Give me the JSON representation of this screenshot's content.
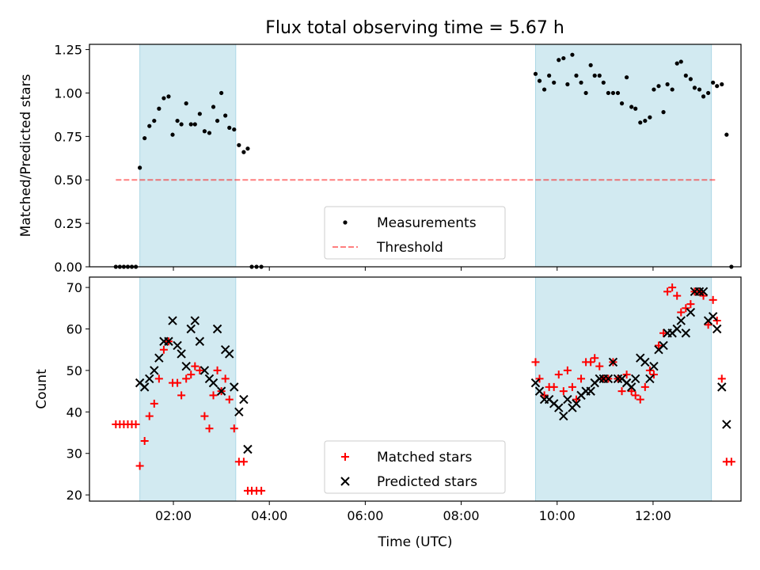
{
  "title": "Flux total observing time = 5.67 h",
  "colors": {
    "shade": "#add8e6",
    "threshold": "#ff0000",
    "matched": "#ff0000",
    "predicted": "#000000",
    "measurement": "#000000"
  },
  "chart_data": [
    {
      "type": "scatter",
      "ylabel": "Matched/Predicted stars",
      "xlabel": "",
      "xlim": [
        "00:15",
        "13:50"
      ],
      "ylim": [
        0,
        1.28
      ],
      "yticks": [
        "0.00",
        "0.25",
        "0.50",
        "0.75",
        "1.00",
        "1.25"
      ],
      "xticks": [
        "02:00",
        "04:00",
        "06:00",
        "08:00",
        "10:00",
        "12:00"
      ],
      "shaded_intervals": [
        [
          "01:18",
          "03:18"
        ],
        [
          "09:33",
          "13:13"
        ]
      ],
      "legend": {
        "position": "bottom-center",
        "entries": [
          "Measurements",
          "Threshold"
        ]
      },
      "threshold": {
        "name": "Threshold",
        "y": 0.5,
        "x_range": [
          "00:48",
          "13:20"
        ]
      },
      "series": [
        {
          "name": "Measurements",
          "points": [
            [
              "00:48",
              0.0
            ],
            [
              "00:53",
              0.0
            ],
            [
              "00:58",
              0.0
            ],
            [
              "01:03",
              0.0
            ],
            [
              "01:08",
              0.0
            ],
            [
              "01:13",
              0.0
            ],
            [
              "01:18",
              0.57
            ],
            [
              "01:24",
              0.74
            ],
            [
              "01:30",
              0.81
            ],
            [
              "01:36",
              0.84
            ],
            [
              "01:42",
              0.91
            ],
            [
              "01:48",
              0.97
            ],
            [
              "01:54",
              0.98
            ],
            [
              "01:59",
              0.76
            ],
            [
              "02:05",
              0.84
            ],
            [
              "02:10",
              0.82
            ],
            [
              "02:16",
              0.94
            ],
            [
              "02:22",
              0.82
            ],
            [
              "02:27",
              0.82
            ],
            [
              "02:33",
              0.88
            ],
            [
              "02:39",
              0.78
            ],
            [
              "02:45",
              0.77
            ],
            [
              "02:50",
              0.92
            ],
            [
              "02:55",
              0.84
            ],
            [
              "03:00",
              1.0
            ],
            [
              "03:05",
              0.87
            ],
            [
              "03:10",
              0.8
            ],
            [
              "03:16",
              0.79
            ],
            [
              "03:22",
              0.7
            ],
            [
              "03:28",
              0.66
            ],
            [
              "03:33",
              0.68
            ],
            [
              "03:38",
              0.0
            ],
            [
              "03:44",
              0.0
            ],
            [
              "03:50",
              0.0
            ],
            [
              "09:33",
              1.11
            ],
            [
              "09:38",
              1.07
            ],
            [
              "09:44",
              1.02
            ],
            [
              "09:50",
              1.1
            ],
            [
              "09:56",
              1.06
            ],
            [
              "10:02",
              1.19
            ],
            [
              "10:08",
              1.2
            ],
            [
              "10:13",
              1.05
            ],
            [
              "10:19",
              1.22
            ],
            [
              "10:24",
              1.1
            ],
            [
              "10:30",
              1.06
            ],
            [
              "10:36",
              1.0
            ],
            [
              "10:42",
              1.16
            ],
            [
              "10:47",
              1.1
            ],
            [
              "10:53",
              1.1
            ],
            [
              "10:58",
              1.06
            ],
            [
              "11:04",
              1.0
            ],
            [
              "11:10",
              1.0
            ],
            [
              "11:16",
              1.0
            ],
            [
              "11:21",
              0.94
            ],
            [
              "11:27",
              1.09
            ],
            [
              "11:33",
              0.92
            ],
            [
              "11:38",
              0.91
            ],
            [
              "11:44",
              0.83
            ],
            [
              "11:50",
              0.84
            ],
            [
              "11:56",
              0.86
            ],
            [
              "12:01",
              1.02
            ],
            [
              "12:07",
              1.04
            ],
            [
              "12:13",
              0.89
            ],
            [
              "12:18",
              1.05
            ],
            [
              "12:24",
              1.02
            ],
            [
              "12:30",
              1.17
            ],
            [
              "12:35",
              1.18
            ],
            [
              "12:41",
              1.1
            ],
            [
              "12:47",
              1.08
            ],
            [
              "12:52",
              1.03
            ],
            [
              "12:58",
              1.02
            ],
            [
              "13:03",
              0.98
            ],
            [
              "13:09",
              1.0
            ],
            [
              "13:15",
              1.06
            ],
            [
              "13:20",
              1.04
            ],
            [
              "13:26",
              1.05
            ],
            [
              "13:32",
              0.76
            ],
            [
              "13:38",
              0.0
            ]
          ]
        }
      ]
    },
    {
      "type": "scatter",
      "ylabel": "Count",
      "xlabel": "Time (UTC)",
      "xlim": [
        "00:15",
        "13:50"
      ],
      "ylim": [
        18.5,
        72.5
      ],
      "yticks": [
        "20",
        "30",
        "40",
        "50",
        "60",
        "70"
      ],
      "xticks": [
        "02:00",
        "04:00",
        "06:00",
        "08:00",
        "10:00",
        "12:00"
      ],
      "shaded_intervals": [
        [
          "01:18",
          "03:18"
        ],
        [
          "09:33",
          "13:13"
        ]
      ],
      "legend": {
        "position": "bottom-center",
        "entries": [
          "Matched stars",
          "Predicted stars"
        ]
      },
      "series": [
        {
          "name": "Matched stars",
          "marker": "+",
          "points": [
            [
              "00:48",
              37
            ],
            [
              "00:53",
              37
            ],
            [
              "00:58",
              37
            ],
            [
              "01:03",
              37
            ],
            [
              "01:08",
              37
            ],
            [
              "01:13",
              37
            ],
            [
              "01:18",
              27
            ],
            [
              "01:24",
              33
            ],
            [
              "01:30",
              39
            ],
            [
              "01:36",
              42
            ],
            [
              "01:42",
              48
            ],
            [
              "01:48",
              55
            ],
            [
              "01:54",
              57
            ],
            [
              "01:59",
              47
            ],
            [
              "02:05",
              47
            ],
            [
              "02:10",
              44
            ],
            [
              "02:16",
              48
            ],
            [
              "02:22",
              49
            ],
            [
              "02:27",
              51
            ],
            [
              "02:33",
              50
            ],
            [
              "02:39",
              39
            ],
            [
              "02:45",
              36
            ],
            [
              "02:50",
              44
            ],
            [
              "02:55",
              50
            ],
            [
              "03:00",
              45
            ],
            [
              "03:05",
              48
            ],
            [
              "03:10",
              43
            ],
            [
              "03:16",
              36
            ],
            [
              "03:22",
              28
            ],
            [
              "03:28",
              28
            ],
            [
              "03:33",
              21
            ],
            [
              "03:38",
              21
            ],
            [
              "03:44",
              21
            ],
            [
              "03:50",
              21
            ],
            [
              "09:33",
              52
            ],
            [
              "09:38",
              48
            ],
            [
              "09:44",
              44
            ],
            [
              "09:50",
              46
            ],
            [
              "09:56",
              46
            ],
            [
              "10:02",
              49
            ],
            [
              "10:08",
              45
            ],
            [
              "10:13",
              50
            ],
            [
              "10:19",
              46
            ],
            [
              "10:24",
              43
            ],
            [
              "10:30",
              48
            ],
            [
              "10:36",
              52
            ],
            [
              "10:42",
              52
            ],
            [
              "10:47",
              53
            ],
            [
              "10:53",
              51
            ],
            [
              "10:58",
              48
            ],
            [
              "11:04",
              48
            ],
            [
              "11:10",
              52
            ],
            [
              "11:16",
              48
            ],
            [
              "11:21",
              45
            ],
            [
              "11:27",
              49
            ],
            [
              "11:33",
              45
            ],
            [
              "11:38",
              44
            ],
            [
              "11:44",
              43
            ],
            [
              "11:50",
              46
            ],
            [
              "11:56",
              50
            ],
            [
              "12:01",
              49
            ],
            [
              "12:07",
              56
            ],
            [
              "12:13",
              59
            ],
            [
              "12:18",
              69
            ],
            [
              "12:24",
              70
            ],
            [
              "12:30",
              68
            ],
            [
              "12:35",
              64
            ],
            [
              "12:41",
              65
            ],
            [
              "12:47",
              66
            ],
            [
              "12:52",
              69
            ],
            [
              "12:58",
              69
            ],
            [
              "13:03",
              68
            ],
            [
              "13:09",
              61
            ],
            [
              "13:15",
              67
            ],
            [
              "13:20",
              62
            ],
            [
              "13:26",
              48
            ],
            [
              "13:32",
              28
            ],
            [
              "13:38",
              28
            ]
          ]
        },
        {
          "name": "Predicted stars",
          "marker": "x",
          "points": [
            [
              "01:18",
              47
            ],
            [
              "01:24",
              46
            ],
            [
              "01:30",
              48
            ],
            [
              "01:36",
              50
            ],
            [
              "01:42",
              53
            ],
            [
              "01:48",
              57
            ],
            [
              "01:54",
              57
            ],
            [
              "01:59",
              62
            ],
            [
              "02:05",
              56
            ],
            [
              "02:10",
              54
            ],
            [
              "02:16",
              51
            ],
            [
              "02:22",
              60
            ],
            [
              "02:27",
              62
            ],
            [
              "02:33",
              57
            ],
            [
              "02:39",
              50
            ],
            [
              "02:45",
              48
            ],
            [
              "02:50",
              47
            ],
            [
              "02:55",
              60
            ],
            [
              "03:00",
              45
            ],
            [
              "03:05",
              55
            ],
            [
              "03:10",
              54
            ],
            [
              "03:16",
              46
            ],
            [
              "03:22",
              40
            ],
            [
              "03:28",
              43
            ],
            [
              "03:33",
              31
            ],
            [
              "09:33",
              47
            ],
            [
              "09:38",
              45
            ],
            [
              "09:44",
              43
            ],
            [
              "09:50",
              43
            ],
            [
              "09:56",
              42
            ],
            [
              "10:02",
              41
            ],
            [
              "10:08",
              39
            ],
            [
              "10:13",
              43
            ],
            [
              "10:19",
              41
            ],
            [
              "10:24",
              42
            ],
            [
              "10:30",
              44
            ],
            [
              "10:36",
              45
            ],
            [
              "10:42",
              45
            ],
            [
              "10:47",
              47
            ],
            [
              "10:53",
              48
            ],
            [
              "10:58",
              48
            ],
            [
              "11:04",
              48
            ],
            [
              "11:10",
              52
            ],
            [
              "11:16",
              48
            ],
            [
              "11:21",
              48
            ],
            [
              "11:27",
              47
            ],
            [
              "11:33",
              46
            ],
            [
              "11:38",
              48
            ],
            [
              "11:44",
              53
            ],
            [
              "11:50",
              52
            ],
            [
              "11:56",
              48
            ],
            [
              "12:01",
              51
            ],
            [
              "12:07",
              55
            ],
            [
              "12:13",
              56
            ],
            [
              "12:18",
              59
            ],
            [
              "12:24",
              59
            ],
            [
              "12:30",
              60
            ],
            [
              "12:35",
              62
            ],
            [
              "12:41",
              59
            ],
            [
              "12:47",
              64
            ],
            [
              "12:52",
              69
            ],
            [
              "12:58",
              69
            ],
            [
              "13:03",
              69
            ],
            [
              "13:09",
              62
            ],
            [
              "13:15",
              63
            ],
            [
              "13:20",
              60
            ],
            [
              "13:26",
              46
            ],
            [
              "13:32",
              37
            ]
          ]
        }
      ]
    }
  ]
}
